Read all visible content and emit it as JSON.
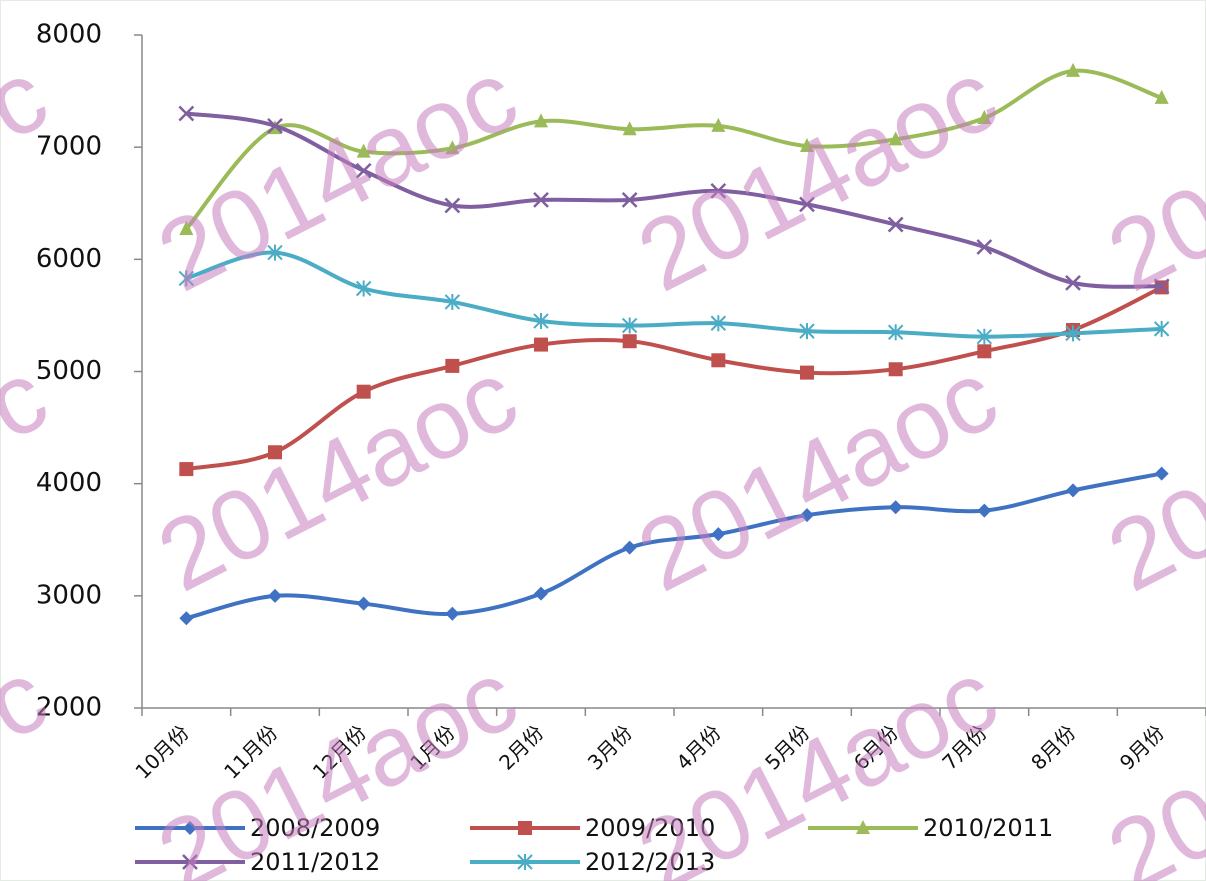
{
  "chart_data": {
    "type": "line",
    "categories": [
      "10月份",
      "11月份",
      "12月份",
      "1月份",
      "2月份",
      "3月份",
      "4月份",
      "5月份",
      "6月份",
      "7月份",
      "8月份",
      "9月份"
    ],
    "series": [
      {
        "name": "2008/2009",
        "color": "#3f72c2",
        "marker": "diamond",
        "values": [
          2800,
          3000,
          2930,
          2840,
          3020,
          3430,
          3550,
          3720,
          3790,
          3760,
          3940,
          4090
        ]
      },
      {
        "name": "2009/2010",
        "color": "#c0504d",
        "marker": "square",
        "values": [
          4130,
          4280,
          4820,
          5050,
          5240,
          5270,
          5100,
          4990,
          5020,
          5180,
          5370,
          5750
        ]
      },
      {
        "name": "2010/2011",
        "color": "#9bbb59",
        "marker": "triangle",
        "values": [
          6270,
          7170,
          6960,
          6990,
          7230,
          7160,
          7190,
          7010,
          7070,
          7260,
          7680,
          7440
        ]
      },
      {
        "name": "2011/2012",
        "color": "#7f5fa0",
        "marker": "x",
        "values": [
          7300,
          7190,
          6790,
          6480,
          6530,
          6530,
          6610,
          6490,
          6310,
          6110,
          5790,
          5760
        ]
      },
      {
        "name": "2012/2013",
        "color": "#4bacc6",
        "marker": "star",
        "values": [
          5830,
          6060,
          5740,
          5620,
          5450,
          5410,
          5430,
          5360,
          5350,
          5310,
          5340,
          5380
        ]
      }
    ],
    "ylim": [
      2000,
      8000
    ],
    "yticks": [
      2000,
      3000,
      4000,
      5000,
      6000,
      7000,
      8000
    ],
    "grid": false,
    "smooth": true,
    "legend": "bottom",
    "watermark": "2014aoc"
  }
}
